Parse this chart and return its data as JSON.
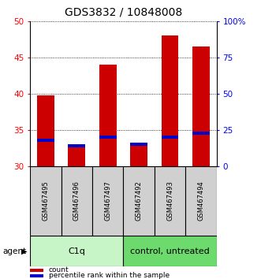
{
  "title": "GDS3832 / 10848008",
  "categories": [
    "GSM467495",
    "GSM467496",
    "GSM467497",
    "GSM467492",
    "GSM467493",
    "GSM467494"
  ],
  "red_values": [
    39.7,
    32.8,
    44.0,
    33.0,
    48.0,
    46.5
  ],
  "blue_values": [
    33.5,
    32.8,
    34.0,
    33.0,
    34.0,
    34.5
  ],
  "y_min": 30,
  "y_max": 50,
  "y_ticks": [
    30,
    35,
    40,
    45,
    50
  ],
  "y2_ticks": [
    0,
    25,
    50,
    75,
    100
  ],
  "y2_labels": [
    "0",
    "25",
    "50",
    "75",
    "100%"
  ],
  "group1_label": "C1q",
  "group2_label": "control, untreated",
  "group1_indices": [
    0,
    1,
    2
  ],
  "group2_indices": [
    3,
    4,
    5
  ],
  "group1_color": "#c8f5c8",
  "group2_color": "#6cda6c",
  "bar_bg_color": "#d0d0d0",
  "red_color": "#cc0000",
  "blue_color": "#0000cc",
  "agent_label": "agent",
  "legend1": "count",
  "legend2": "percentile rank within the sample",
  "bar_width": 0.55,
  "title_fontsize": 10,
  "tick_fontsize": 7.5,
  "blue_bar_height": 0.45
}
